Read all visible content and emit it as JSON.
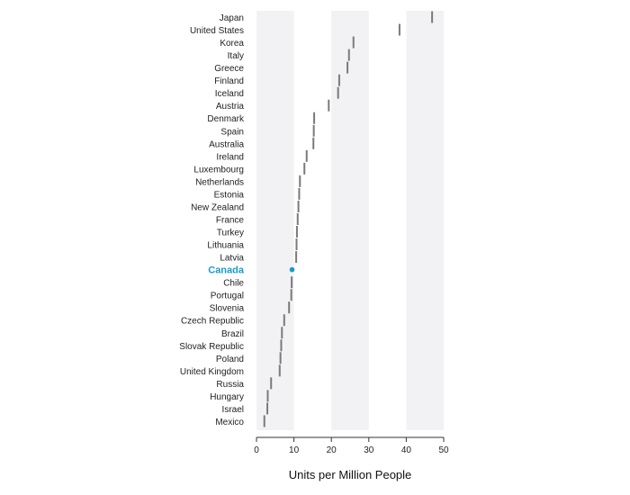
{
  "chart_data": {
    "type": "dot",
    "xlabel": "Units per Million People",
    "xlim": [
      0,
      50
    ],
    "xticks": [
      0,
      10,
      20,
      30,
      40,
      50
    ],
    "bands": [
      [
        0,
        10
      ],
      [
        20,
        30
      ],
      [
        40,
        50
      ]
    ],
    "highlight": "Canada",
    "colors": {
      "mark": "#7a7a7a",
      "highlight": "#1a9cc7",
      "band": "#f2f2f4"
    },
    "categories": [
      "Japan",
      "United States",
      "Korea",
      "Italy",
      "Greece",
      "Finland",
      "Iceland",
      "Austria",
      "Denmark",
      "Spain",
      "Australia",
      "Ireland",
      "Luxembourg",
      "Netherlands",
      "Estonia",
      "New Zealand",
      "France",
      "Turkey",
      "Lithuania",
      "Latvia",
      "Canada",
      "Chile",
      "Portugal",
      "Slovenia",
      "Czech Republic",
      "Brazil",
      "Slovak Republic",
      "Poland",
      "United Kingdom",
      "Russia",
      "Hungary",
      "Israel",
      "Mexico"
    ],
    "values": [
      46.9,
      38.2,
      25.9,
      24.7,
      24.3,
      22.1,
      21.8,
      19.3,
      15.4,
      15.3,
      15.2,
      13.4,
      12.8,
      11.6,
      11.4,
      11.2,
      11.0,
      10.8,
      10.7,
      10.6,
      9.5,
      9.4,
      9.3,
      8.7,
      7.4,
      6.8,
      6.6,
      6.4,
      6.2,
      3.9,
      3.0,
      2.9,
      2.1
    ]
  }
}
